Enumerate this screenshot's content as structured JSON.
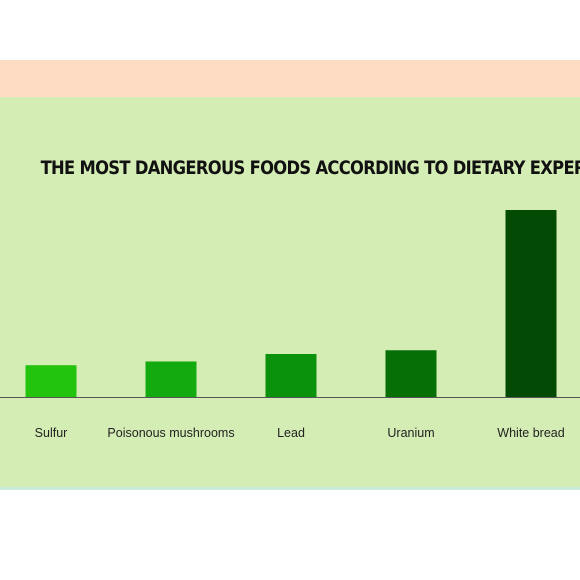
{
  "colors": {
    "top_band": "#fddcc3",
    "panel": "#d4edb4",
    "bottom_line": "#c7ecdc",
    "axis": "#555555",
    "bars": [
      "#22c40e",
      "#13aa10",
      "#0b920c",
      "#067006",
      "#034a05"
    ]
  },
  "chart_data": {
    "type": "bar",
    "title": "THE MOST DANGEROUS FOODS ACCORDING TO DIETARY EXPERTS",
    "categories": [
      "Sulfur",
      "Poisonous mushrooms",
      "Lead",
      "Uranium",
      "White bread"
    ],
    "values": [
      17,
      19,
      23,
      25,
      100
    ],
    "ylim": [
      0,
      100
    ],
    "xlabel": "",
    "ylabel": "",
    "grid": false,
    "legend": "none"
  }
}
